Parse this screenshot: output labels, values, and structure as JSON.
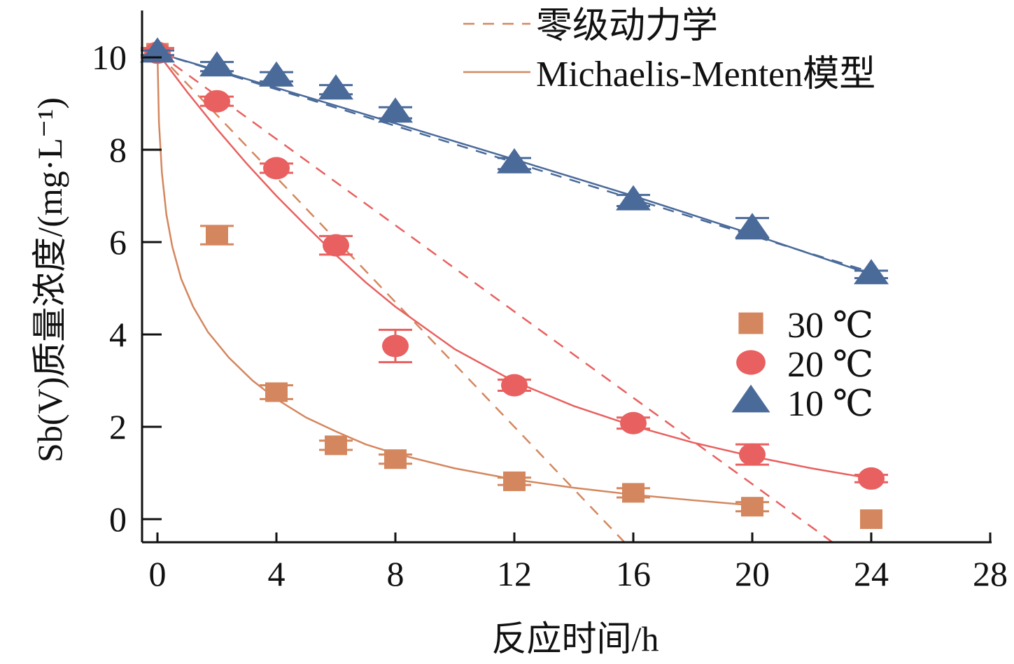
{
  "chart_data": {
    "type": "scatter",
    "xlabel": "反应时间/h",
    "ylabel": "Sb(V)质量浓度/(mg·L⁻¹)",
    "xlim": [
      -0.5,
      28
    ],
    "ylim": [
      -0.5,
      11
    ],
    "xticks": [
      0,
      4,
      8,
      12,
      16,
      20,
      24,
      28
    ],
    "yticks": [
      0,
      2,
      4,
      6,
      8,
      10
    ],
    "legend_position": "top-right / right-middle",
    "line_legend": [
      {
        "label": "零级动力学",
        "style": "dashed"
      },
      {
        "label": "Michaelis-Menten模型",
        "style": "solid"
      }
    ],
    "series": [
      {
        "name": "30 ℃",
        "marker": "square",
        "color": "#D4875E",
        "x": [
          0,
          2,
          4,
          6,
          8,
          12,
          16,
          20,
          24
        ],
        "y": [
          10.1,
          6.15,
          2.75,
          1.6,
          1.3,
          0.82,
          0.57,
          0.27,
          0.0
        ],
        "err": [
          0.1,
          0.2,
          0.15,
          0.1,
          0.1,
          0.08,
          0.1,
          0.1,
          0.0
        ],
        "zero_order": {
          "c0": 10.1,
          "k": 0.675
        },
        "mm_curve": {
          "x": [
            0,
            0.05,
            0.15,
            0.3,
            0.5,
            0.8,
            1.2,
            1.7,
            2.4,
            3.2,
            4,
            5,
            6,
            7,
            8,
            10,
            12,
            14,
            16,
            18,
            20
          ],
          "y": [
            10.1,
            8.6,
            7.5,
            6.6,
            5.9,
            5.2,
            4.6,
            4.05,
            3.5,
            3.0,
            2.6,
            2.2,
            1.9,
            1.62,
            1.42,
            1.1,
            0.86,
            0.68,
            0.53,
            0.41,
            0.3
          ]
        }
      },
      {
        "name": "20 ℃",
        "marker": "circle",
        "color": "#E8605F",
        "x": [
          0,
          2,
          4,
          6,
          8,
          12,
          16,
          20,
          24
        ],
        "y": [
          10.1,
          9.05,
          7.6,
          5.93,
          3.75,
          2.9,
          2.08,
          1.4,
          0.88
        ],
        "err": [
          0.1,
          0.1,
          0.1,
          0.2,
          0.35,
          0.12,
          0.12,
          0.22,
          0.08
        ],
        "zero_order": {
          "c0": 10.1,
          "k": 0.467
        },
        "mm_curve": {
          "x": [
            0,
            1,
            2,
            3,
            4,
            5,
            6,
            7,
            8,
            10,
            12,
            14,
            16,
            18,
            20,
            22,
            24
          ],
          "y": [
            10.1,
            9.25,
            8.45,
            7.7,
            7.0,
            6.35,
            5.72,
            5.13,
            4.6,
            3.68,
            2.98,
            2.45,
            2.02,
            1.66,
            1.36,
            1.1,
            0.88
          ]
        }
      },
      {
        "name": "10 ℃",
        "marker": "triangle",
        "color": "#4A6A9A",
        "x": [
          0,
          2,
          4,
          6,
          8,
          12,
          16,
          20,
          24
        ],
        "y": [
          10.1,
          9.8,
          9.58,
          9.3,
          8.8,
          7.7,
          6.9,
          6.3,
          5.3
        ],
        "err": [
          0.05,
          0.1,
          0.1,
          0.1,
          0.12,
          0.12,
          0.12,
          0.22,
          0.08
        ],
        "zero_order": {
          "c0": 10.1,
          "k": 0.198
        },
        "mm_curve": {
          "x": [
            0,
            4,
            8,
            12,
            16,
            20,
            24
          ],
          "y": [
            10.1,
            9.34,
            8.57,
            7.79,
            7.0,
            6.17,
            5.3
          ]
        }
      }
    ]
  }
}
